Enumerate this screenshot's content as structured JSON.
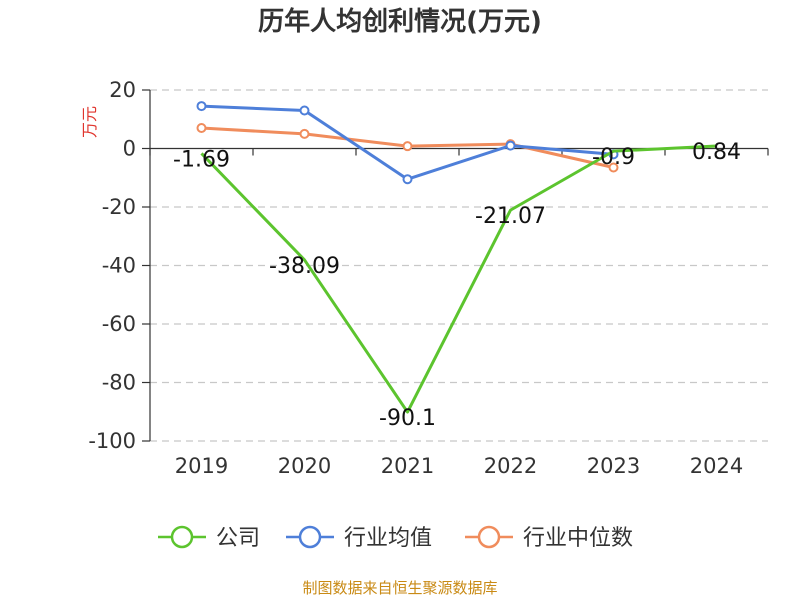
{
  "chart_data": {
    "type": "line",
    "title": "历年人均创利情况(万元)",
    "ylabel": "万元",
    "xlabel": "",
    "categories": [
      "2019",
      "2020",
      "2021",
      "2022",
      "2023",
      "2024"
    ],
    "ylim": [
      -100,
      20
    ],
    "yticks": [
      20,
      0,
      -20,
      -40,
      -60,
      -80,
      -100
    ],
    "grid": true,
    "legend_position": "bottom",
    "series": [
      {
        "name": "公司",
        "color": "#5cc42e",
        "values": [
          -1.69,
          -38.09,
          -90.1,
          -21.07,
          -0.9,
          0.84
        ],
        "labels": [
          "-1.69",
          "-38.09",
          "-90.1",
          "-21.07",
          "-0.9",
          "0.84"
        ]
      },
      {
        "name": "行业均值",
        "color": "#4e7fd9",
        "values": [
          14.5,
          13.0,
          -10.5,
          1.0,
          -2.0,
          null
        ]
      },
      {
        "name": "行业中位数",
        "color": "#f08c5c",
        "values": [
          7.0,
          5.0,
          0.8,
          1.5,
          -6.5,
          null
        ]
      }
    ]
  },
  "ui": {
    "unit_color": "#e0342c",
    "source_text": "制图数据来自恒生聚源数据库",
    "source_color": "#c98a14"
  }
}
